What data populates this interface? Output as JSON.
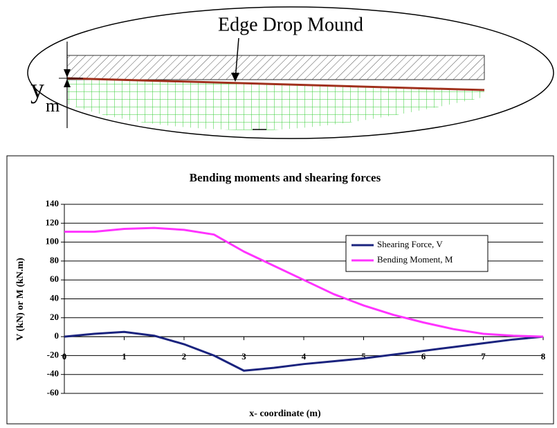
{
  "diagram": {
    "label": "Edge Drop Mound",
    "dimension_symbol": "y",
    "dimension_subscript": "m"
  },
  "chart_data": {
    "type": "line",
    "title": "Bending moments and shearing forces",
    "x_label": "x- coordinate (m)",
    "y_label": "V (kN) or M (kN.m)",
    "x": [
      0,
      0.5,
      1,
      1.5,
      2,
      2.5,
      3,
      3.5,
      4,
      4.5,
      5,
      5.5,
      6,
      6.5,
      7,
      7.5,
      8
    ],
    "series": [
      {
        "name": "Shearing Force, V",
        "color": "#1a237e",
        "values": [
          0,
          3,
          5,
          1,
          -8,
          -20,
          -36,
          -33,
          -29,
          -26,
          -23,
          -19,
          -15,
          -11,
          -7,
          -3,
          0
        ]
      },
      {
        "name": "Bending Moment, M",
        "color": "#ff33ff",
        "values": [
          111,
          111,
          114,
          115,
          113,
          108,
          90,
          75,
          60,
          45,
          33,
          23,
          15,
          8,
          3,
          1,
          0
        ]
      }
    ],
    "xlim": [
      0,
      8
    ],
    "xticks": [
      0,
      1,
      2,
      3,
      4,
      5,
      6,
      7,
      8
    ],
    "ylim": [
      -60,
      140
    ],
    "yticks": [
      -60,
      -40,
      -20,
      0,
      20,
      40,
      60,
      80,
      100,
      120,
      140
    ],
    "grid": true,
    "legend": "right"
  }
}
